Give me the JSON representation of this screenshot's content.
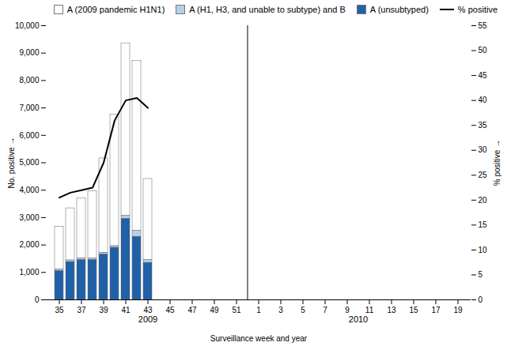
{
  "chart_data": {
    "type": "bar",
    "stacked": true,
    "grid": false,
    "legend": "upper right",
    "xlabel": "Surveillance week and year",
    "ylabel": "No. positive",
    "y2label": "% positive",
    "annotations": [
      "2009",
      "2010"
    ],
    "categories": [
      "35",
      null,
      "37",
      null,
      "39",
      null,
      "41",
      null,
      "43",
      null,
      "45",
      null,
      "47",
      null,
      "49",
      null,
      "51",
      null,
      "1",
      null,
      "3",
      null,
      "5",
      null,
      "7",
      null,
      "9",
      null,
      "11",
      null,
      "13",
      null,
      "15",
      null,
      "17",
      null,
      "19"
    ],
    "ylim": [
      0,
      10000
    ],
    "yticks": [
      0,
      {
        "value": 1000,
        "label": "1,000"
      },
      {
        "value": 2000,
        "label": "2,000"
      },
      {
        "value": 3000,
        "label": "3,000"
      },
      {
        "value": 4000,
        "label": "4,000"
      },
      {
        "value": 5000,
        "label": "5,000"
      },
      {
        "value": 6000,
        "label": "6,000"
      },
      {
        "value": 7000,
        "label": "7,000"
      },
      {
        "value": 8000,
        "label": "8,000"
      },
      {
        "value": 9000,
        "label": "9,000"
      },
      {
        "value": 10000,
        "label": "10,000"
      }
    ],
    "y2lim": [
      0,
      55
    ],
    "y2ticks": [
      0,
      5,
      10,
      15,
      20,
      25,
      30,
      35,
      40,
      45,
      50,
      55
    ],
    "series": [
      {
        "name": "A (2009 pandemic H1N1)",
        "type": "bar",
        "color": "#ffffff",
        "values": [
          1550,
          1900,
          2200,
          2450,
          3450,
          4800,
          6300,
          6200,
          2950,
          null,
          null,
          null,
          null,
          null,
          null,
          null,
          null,
          null,
          null,
          null,
          null,
          null,
          null,
          null,
          null,
          null,
          null,
          null,
          null,
          null,
          null,
          null,
          null,
          null,
          null,
          null,
          null
        ]
      },
      {
        "name": "A (H1, H3, and unable to subtype) and B",
        "type": "bar",
        "color": "#b8cfe8",
        "values": [
          60,
          60,
          60,
          60,
          60,
          60,
          110,
          220,
          110,
          null,
          null,
          null,
          null,
          null,
          null,
          null,
          null,
          null,
          null,
          null,
          null,
          null,
          null,
          null,
          null,
          null,
          null,
          null,
          null,
          null,
          null,
          null,
          null,
          null,
          null,
          null,
          null
        ]
      },
      {
        "name": "A (unsubtyped)",
        "type": "bar",
        "color": "#2060a8",
        "values": [
          1050,
          1380,
          1450,
          1450,
          1650,
          1900,
          2950,
          2300,
          1350,
          null,
          null,
          null,
          null,
          null,
          null,
          null,
          null,
          null,
          null,
          null,
          null,
          null,
          null,
          null,
          null,
          null,
          null,
          null,
          null,
          null,
          null,
          null,
          null,
          null,
          null,
          null,
          null
        ]
      },
      {
        "name": "% positive",
        "type": "line",
        "axis": "y2",
        "color": "#000000",
        "values": [
          20.5,
          21.5,
          22.0,
          22.5,
          27.5,
          36.0,
          40.0,
          40.5,
          38.5,
          null,
          null,
          null,
          null,
          null,
          null,
          null,
          null,
          null,
          null,
          null,
          null,
          null,
          null,
          null,
          null,
          null,
          null,
          null,
          null,
          null,
          null,
          null,
          null,
          null,
          null,
          null,
          null
        ]
      }
    ]
  }
}
